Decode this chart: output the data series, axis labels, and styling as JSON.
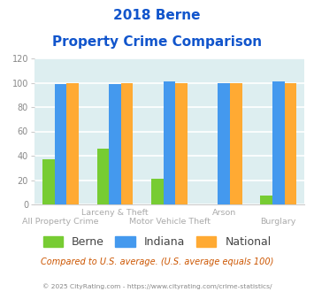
{
  "title_line1": "2018 Berne",
  "title_line2": "Property Crime Comparison",
  "categories": [
    "All Property Crime",
    "Larceny & Theft",
    "Motor Vehicle Theft",
    "Arson",
    "Burglary"
  ],
  "berne_values": [
    37,
    46,
    21,
    0,
    7
  ],
  "indiana_values": [
    99,
    99,
    101,
    100,
    101
  ],
  "national_values": [
    100,
    100,
    100,
    100,
    100
  ],
  "berne_color": "#77cc33",
  "indiana_color": "#4499ee",
  "national_color": "#ffaa33",
  "ylim": [
    0,
    120
  ],
  "yticks": [
    0,
    20,
    40,
    60,
    80,
    100,
    120
  ],
  "background_color": "#ddeef0",
  "grid_color": "#ffffff",
  "title_color": "#1155cc",
  "subtitle_note": "Compared to U.S. average. (U.S. average equals 100)",
  "footer": "© 2025 CityRating.com - https://www.cityrating.com/crime-statistics/",
  "note_color": "#cc5500",
  "footer_color": "#888888",
  "label_color": "#aaaaaa",
  "x_top_labels": {
    "1": "Larceny & Theft",
    "3": "Arson"
  },
  "x_bot_labels": {
    "0": "All Property Crime",
    "2": "Motor Vehicle Theft",
    "4": "Burglary"
  }
}
